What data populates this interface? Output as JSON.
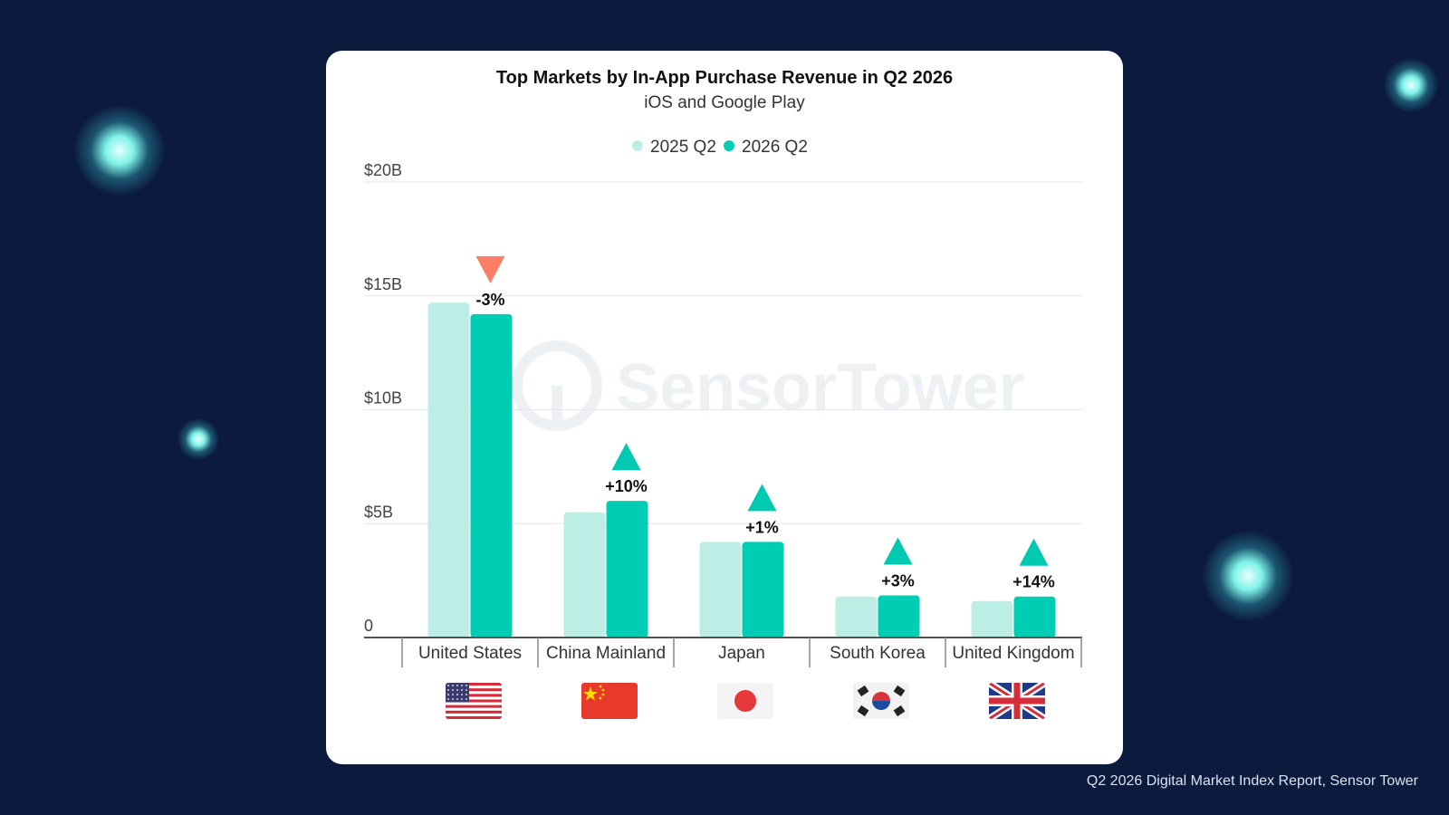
{
  "chart_data": {
    "type": "bar",
    "title": "Top Markets by In-App Purchase Revenue in Q2 2026",
    "subtitle": "iOS and Google Play",
    "categories": [
      "United States",
      "China Mainland",
      "Japan",
      "South Korea",
      "United Kingdom"
    ],
    "series": [
      {
        "name": "2025 Q2",
        "values": [
          14.7,
          5.5,
          4.2,
          1.8,
          1.6
        ],
        "color": "#bdeee6"
      },
      {
        "name": "2026 Q2",
        "values": [
          14.2,
          6.0,
          4.2,
          1.85,
          1.8
        ],
        "color": "#00cdb4"
      }
    ],
    "changes": [
      "-3%",
      "+10%",
      "+1%",
      "+3%",
      "+14%"
    ],
    "change_direction": [
      "down",
      "up",
      "up",
      "up",
      "up"
    ],
    "y_ticks": [
      "0",
      "$5B",
      "$10B",
      "$15B",
      "$20B"
    ],
    "y_tick_values": [
      0,
      5,
      10,
      15,
      20
    ],
    "ylim": [
      0,
      20
    ],
    "grid": true,
    "legend": "top-center",
    "up_color": "#00c9b2",
    "down_color": "#fb7e66",
    "flags": [
      "us-flag",
      "china-flag",
      "japan-flag",
      "south-korea-flag",
      "uk-flag"
    ]
  },
  "watermark": "SensorTower",
  "source": "Q2 2026 Digital Market Index Report, Sensor Tower"
}
